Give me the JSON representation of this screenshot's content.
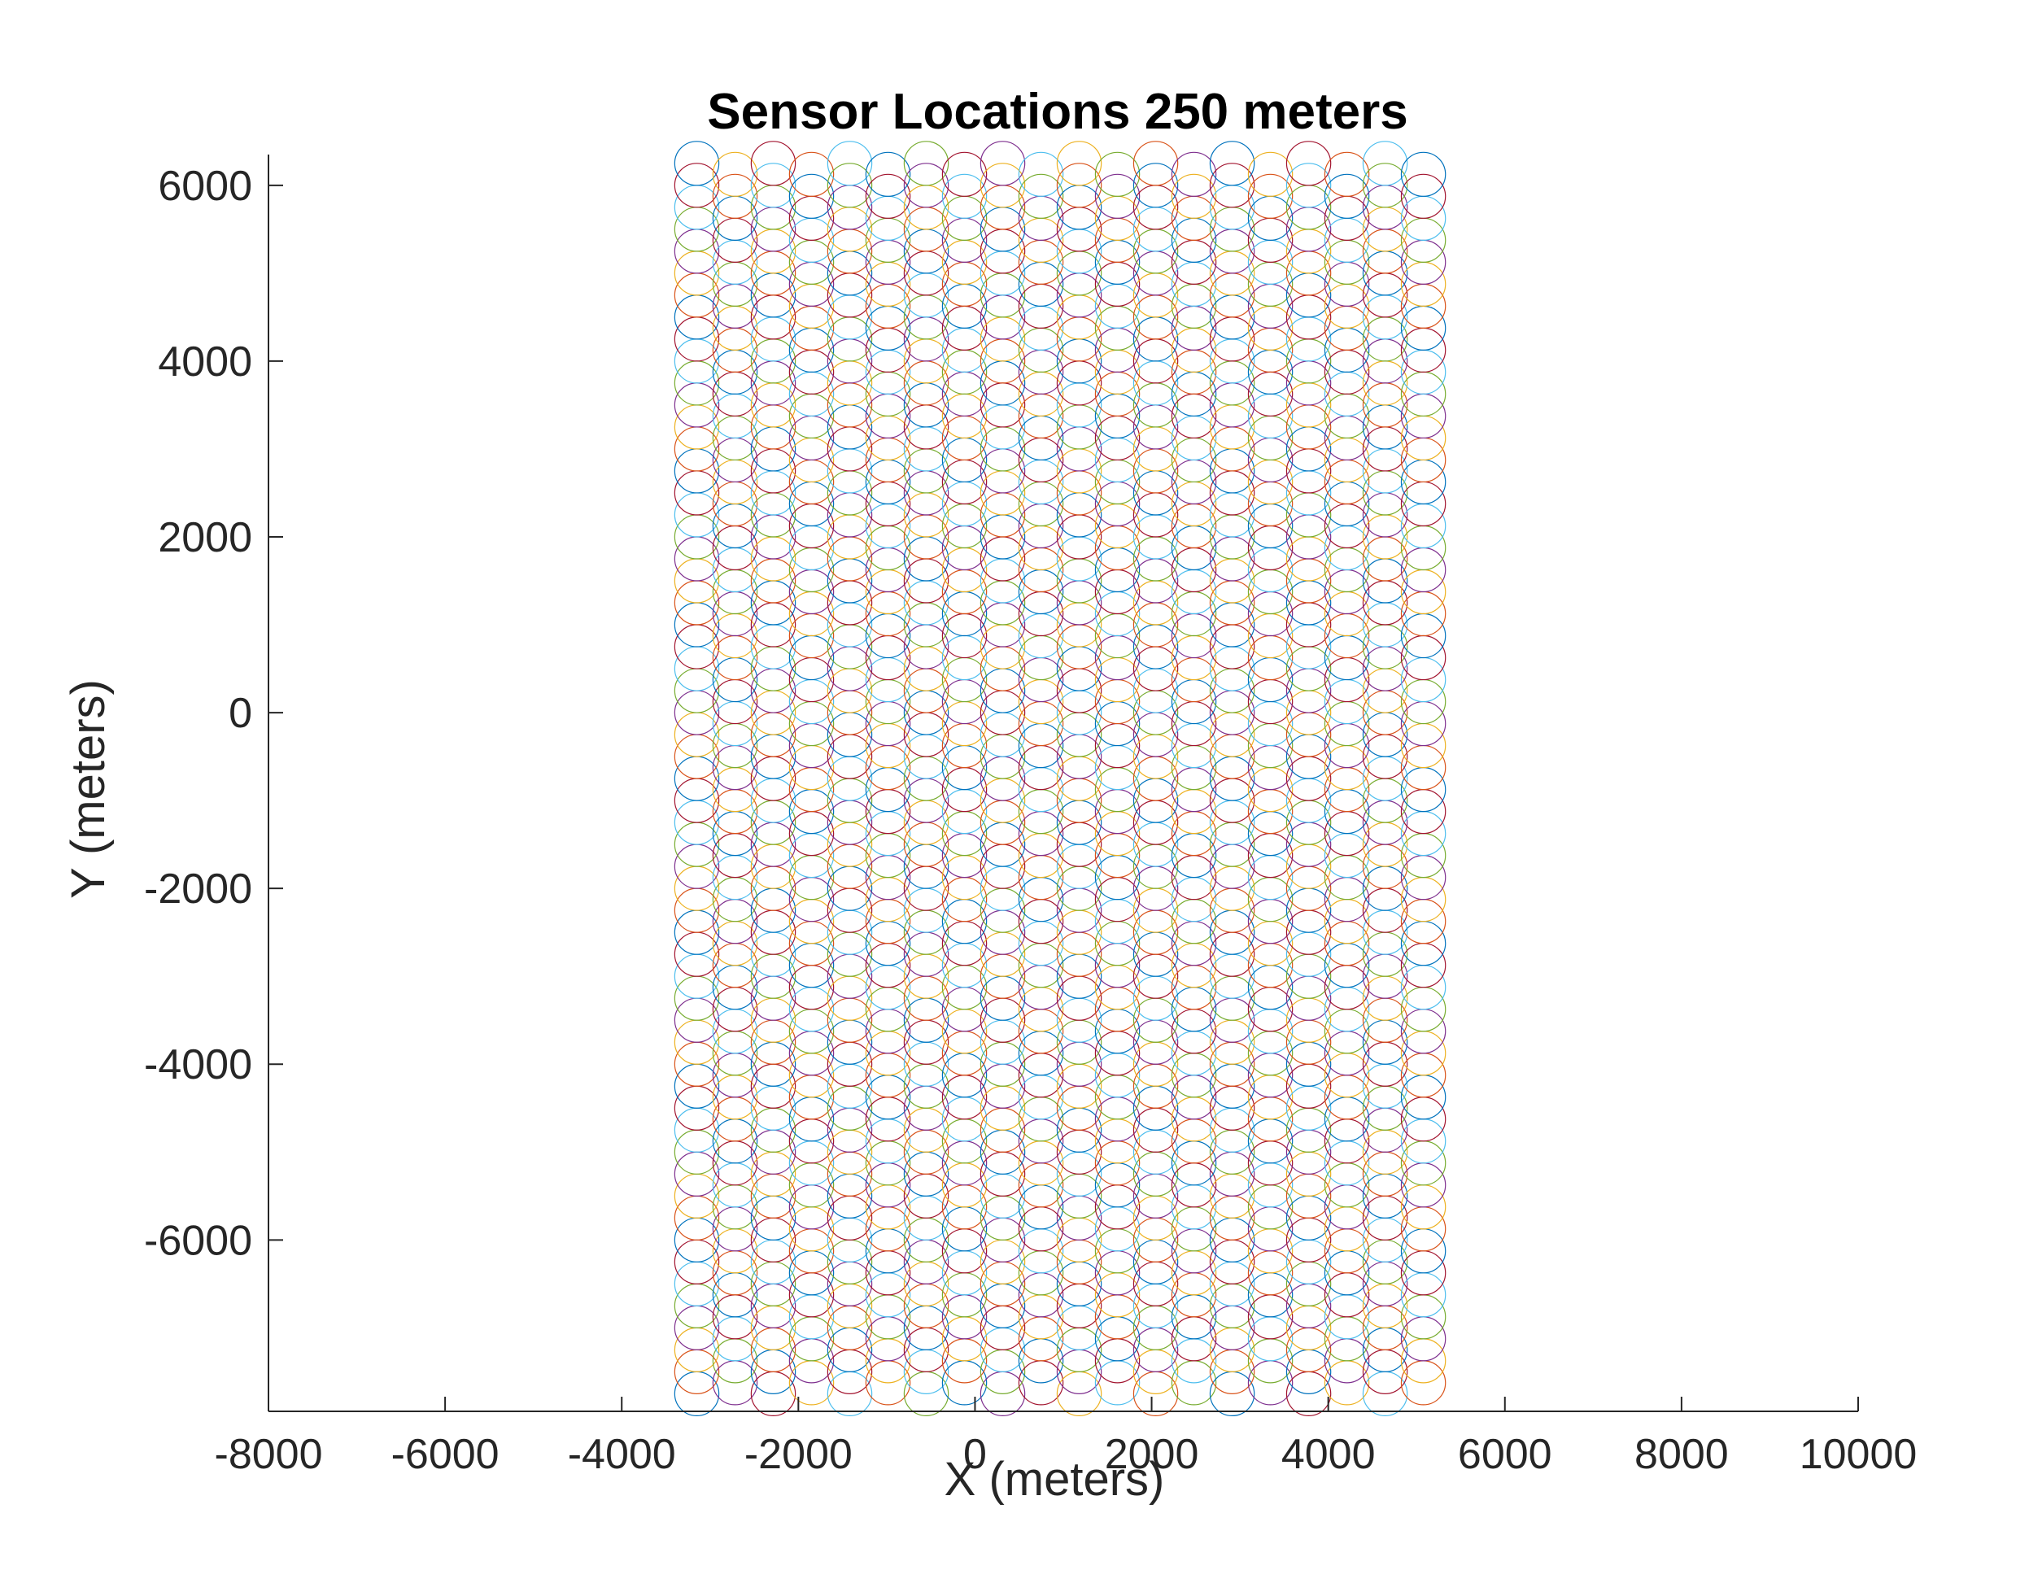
{
  "chart_data": {
    "type": "scatter",
    "title": "Sensor Locations 250 meters",
    "xlabel": "X (meters)",
    "ylabel": "Y (meters)",
    "xlim": [
      -8000,
      10000
    ],
    "ylim": [
      -7950,
      6350
    ],
    "xticks": [
      -8000,
      -6000,
      -4000,
      -2000,
      0,
      2000,
      4000,
      6000,
      8000,
      10000
    ],
    "xtick_labels": [
      "-8000",
      "-6000",
      "-4000",
      "-2000",
      "0",
      "2000",
      "4000",
      "6000",
      "8000",
      "10000"
    ],
    "yticks": [
      -6000,
      -4000,
      -2000,
      0,
      2000,
      4000,
      6000
    ],
    "ytick_labels": [
      "-6000",
      "-4000",
      "-2000",
      "0",
      "2000",
      "4000",
      "6000"
    ],
    "grid": false,
    "legend": "none",
    "sensor_radius": 250,
    "series_colors": [
      "#0072BD",
      "#D95319",
      "#EDB120",
      "#7E2F8E",
      "#77AC30",
      "#4DBEEE",
      "#A2142F"
    ],
    "grid_pattern": {
      "x_start": -3150,
      "x_step": 433,
      "columns": 20,
      "y_start": -7750,
      "y_step": 250,
      "rows_even_col": 57,
      "rows_odd_col": 57,
      "odd_col_y_offset": 125
    }
  }
}
